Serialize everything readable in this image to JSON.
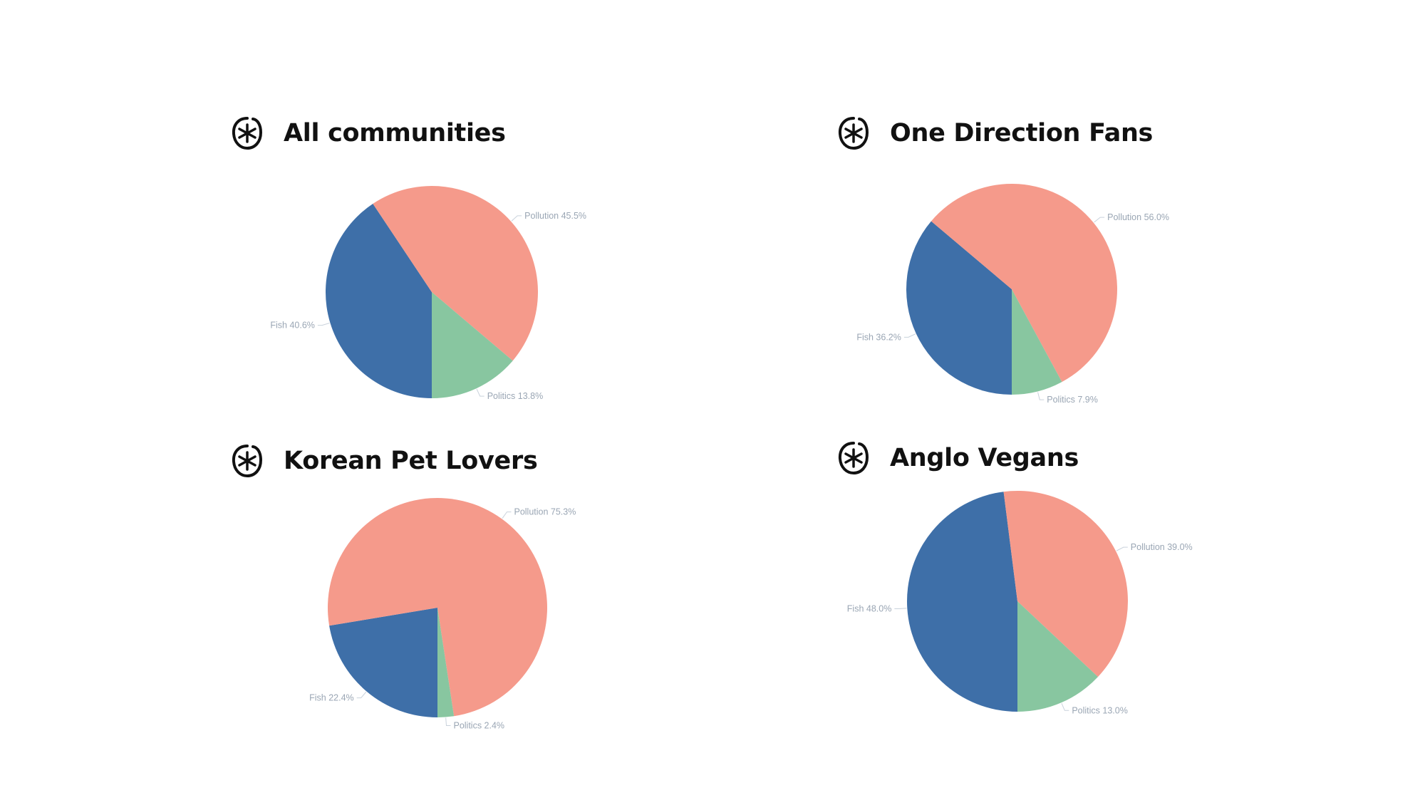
{
  "colors": {
    "Fish": "#3e6fa8",
    "Pollution": "#f59a8b",
    "Politics": "#88c6a0",
    "label": "#9aa6b4",
    "leader": "#c9d2dc"
  },
  "chart_data": [
    {
      "type": "pie",
      "title": "All communities",
      "slices": [
        {
          "name": "Fish",
          "value": 40.6
        },
        {
          "name": "Pollution",
          "value": 45.5
        },
        {
          "name": "Politics",
          "value": 13.8
        }
      ]
    },
    {
      "type": "pie",
      "title": "One Direction Fans",
      "slices": [
        {
          "name": "Fish",
          "value": 36.2
        },
        {
          "name": "Pollution",
          "value": 56.0
        },
        {
          "name": "Politics",
          "value": 7.9
        }
      ]
    },
    {
      "type": "pie",
      "title": "Korean Pet Lovers",
      "slices": [
        {
          "name": "Fish",
          "value": 22.4
        },
        {
          "name": "Pollution",
          "value": 75.3
        },
        {
          "name": "Politics",
          "value": 2.4
        }
      ]
    },
    {
      "type": "pie",
      "title": "Anglo Vegans",
      "slices": [
        {
          "name": "Fish",
          "value": 48.0
        },
        {
          "name": "Pollution",
          "value": 39.0
        },
        {
          "name": "Politics",
          "value": 13.0
        }
      ]
    }
  ]
}
